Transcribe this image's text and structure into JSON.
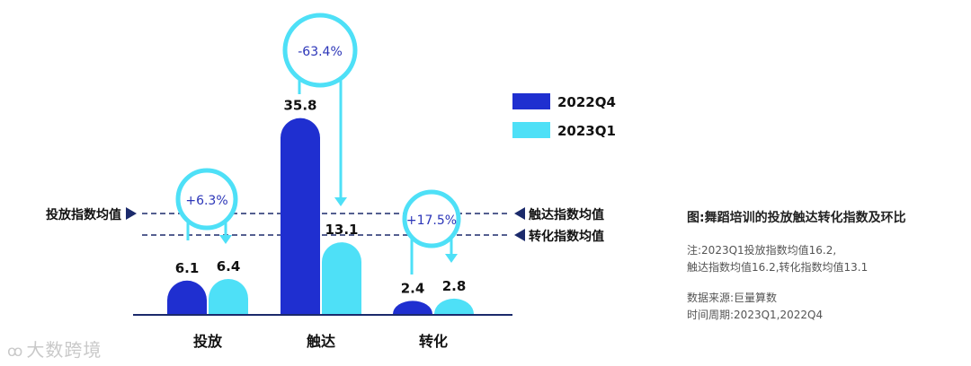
{
  "chart_data": {
    "type": "bar",
    "categories": [
      "投放",
      "触达",
      "转化"
    ],
    "series": [
      {
        "name": "2022Q4",
        "values": [
          6.1,
          35.8,
          2.4
        ],
        "color": "#1f2fd0"
      },
      {
        "name": "2023Q1",
        "values": [
          6.4,
          13.1,
          2.8
        ],
        "color": "#4ee0f7"
      }
    ],
    "value_labels": [
      [
        "6.1",
        "35.8",
        "2.4"
      ],
      [
        "6.4",
        "13.1",
        "2.8"
      ]
    ],
    "changes": [
      "+6.3%",
      "-63.4%",
      "+17.5%"
    ],
    "reference_lines": [
      {
        "label_left": "投放指数均值",
        "label_right": "触达指数均值",
        "value": 16.2
      },
      {
        "label_right": "转化指数均值",
        "value": 13.1
      }
    ],
    "legend_position": "right",
    "grid": false,
    "ylim": [
      0,
      40
    ]
  },
  "colors": {
    "dark_blue": "#1f2fd0",
    "cyan": "#4ee0f7",
    "navy": "#1b2a6b",
    "change_text": "#2b35b8"
  },
  "caption": {
    "title": "图:舞蹈培训的投放触达转化指数及环比",
    "note_line1": "注:2023Q1投放指数均值16.2,",
    "note_line2": "触达指数均值16.2,转化指数均值13.1",
    "source": "数据来源:巨量算数",
    "period": "时间周期:2023Q1,2022Q4"
  },
  "watermark": {
    "text": "大数跨境",
    "icon": "logo-icon"
  }
}
